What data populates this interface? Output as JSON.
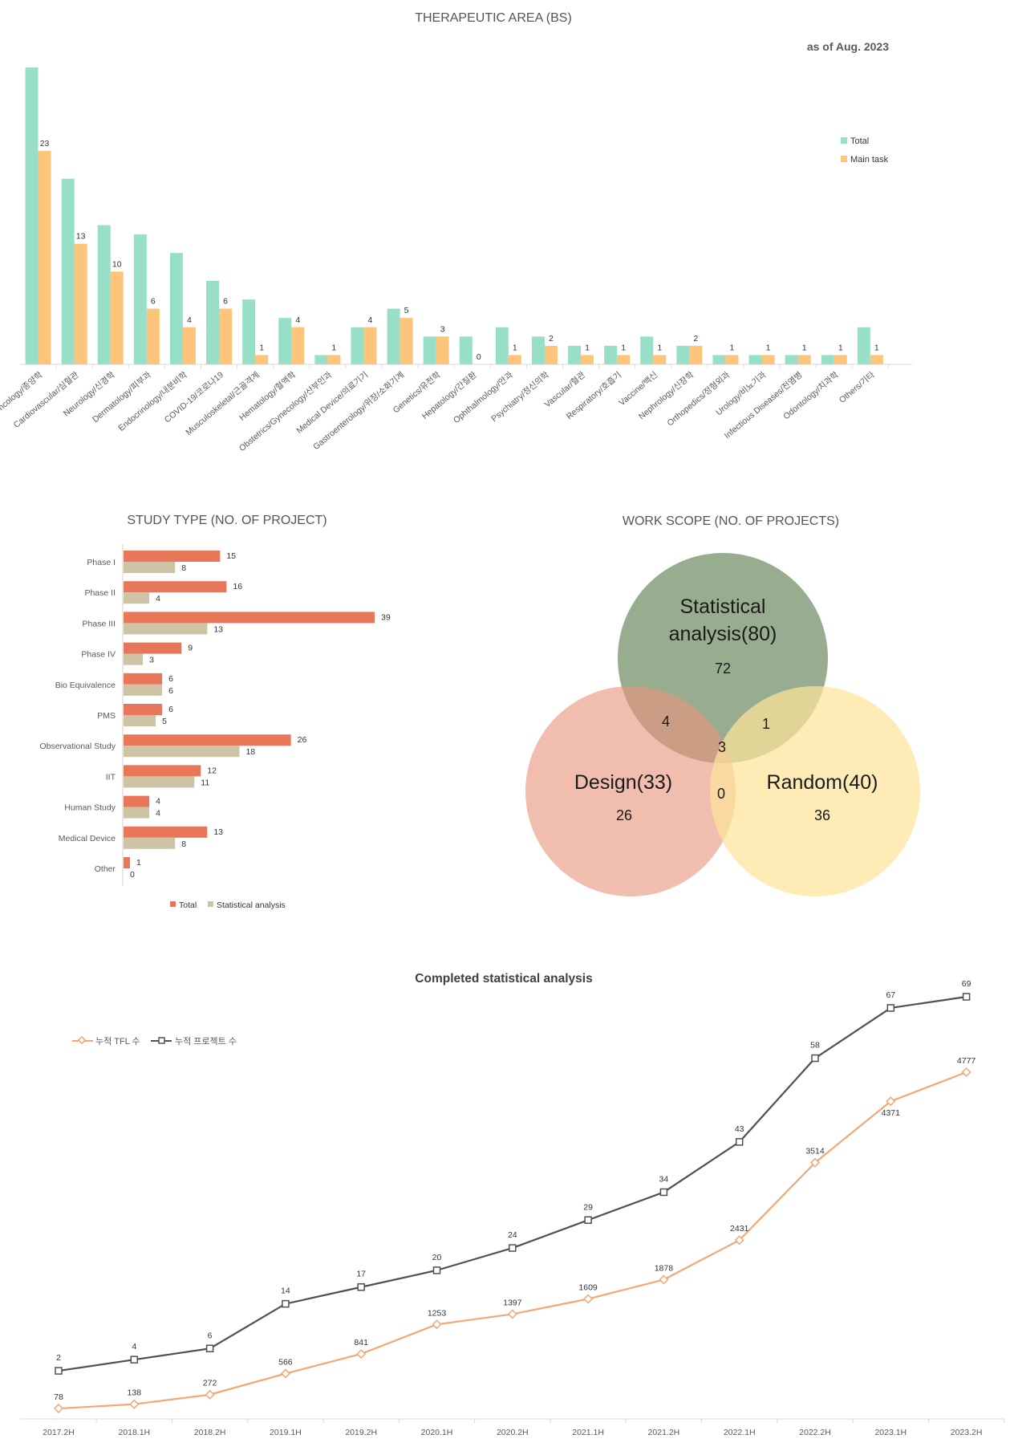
{
  "therapeutic": {
    "title": "THERAPEUTIC AREA (BS)",
    "date_note": "as of Aug. 2023",
    "legend": [
      "Total",
      "Main task"
    ],
    "colors": {
      "total": "#98DFC8",
      "main": "#FDC47C"
    }
  },
  "study_type": {
    "title": "STUDY TYPE (NO. OF PROJECT)",
    "legend": [
      "Total",
      "Statistical analysis"
    ],
    "colors": {
      "total": "#E8775A",
      "stat": "#CFC3A6"
    }
  },
  "work_scope": {
    "title": "WORK SCOPE (NO. OF PROJECTS)",
    "stat": {
      "name": "Statistical",
      "name2": "analysis(80)",
      "only": "72",
      "color": "#7B9570"
    },
    "design": {
      "name": "Design(33)",
      "only": "26",
      "color": "#E8957E"
    },
    "random": {
      "name": "Random(40)",
      "only": "36",
      "color": "#FDE39A"
    },
    "stat_design": "4",
    "stat_random": "1",
    "design_random": "0",
    "all_three": "3"
  },
  "completed": {
    "title": "Completed statistical analysis",
    "legend": [
      "누적 TFL 수",
      "누적 프로젝트 수"
    ],
    "colors": {
      "tfl": "#F2A774",
      "proj": "#505050"
    }
  },
  "chart_data": [
    {
      "type": "bar",
      "title": "THERAPEUTIC AREA (BS)",
      "categories": [
        "Oncology/종양학",
        "Cardiovascular/심혈관",
        "Neurology/신경학",
        "Dermatology/피부과",
        "Endocrinology/내분비학",
        "COVID-19/코로나19",
        "Musculoskeletal/근골격계",
        "Hematology/혈액학",
        "Obstetrics/Gynecology/산부인과",
        "Medical Device/의료기기",
        "Gastroenterology/위장/소화기계",
        "Genetics/유전학",
        "Hepatology/간질환",
        "Ophthalmology/안과",
        "Psychiatry/정신의학",
        "Vascular/혈관",
        "Respiratory/호흡기",
        "Vaccine/백신",
        "Nephrology/신장학",
        "Orthopedics/정형외과",
        "Urology/비뇨기과",
        "Infectious Diseases/전염병",
        "Odontology/치과학",
        "Others/기타"
      ],
      "series": [
        {
          "name": "Total",
          "values": [
            32,
            20,
            15,
            14,
            12,
            9,
            7,
            5,
            1,
            4,
            6,
            3,
            3,
            4,
            3,
            2,
            2,
            3,
            2,
            1,
            1,
            1,
            1,
            4
          ]
        },
        {
          "name": "Main task",
          "values": [
            23,
            13,
            10,
            6,
            4,
            6,
            1,
            4,
            1,
            4,
            5,
            3,
            0,
            1,
            2,
            1,
            1,
            1,
            2,
            1,
            1,
            1,
            1,
            1
          ]
        }
      ],
      "data_labels_series": "Main task",
      "ylim": [
        0,
        32
      ],
      "legend_position": "right"
    },
    {
      "type": "bar",
      "orientation": "horizontal",
      "title": "STUDY TYPE (NO. OF PROJECT)",
      "categories": [
        "Phase I",
        "Phase II",
        "Phase III",
        "Phase IV",
        "Bio Equivalence",
        "PMS",
        "Observational Study",
        "IIT",
        "Human Study",
        "Medical Device",
        "Other"
      ],
      "series": [
        {
          "name": "Total",
          "values": [
            15,
            16,
            39,
            9,
            6,
            6,
            26,
            12,
            4,
            13,
            1
          ]
        },
        {
          "name": "Statistical analysis",
          "values": [
            8,
            4,
            13,
            3,
            6,
            5,
            18,
            11,
            4,
            8,
            0
          ]
        }
      ],
      "xlim": [
        0,
        39
      ],
      "legend_position": "bottom"
    },
    {
      "type": "line",
      "title": "Completed statistical analysis",
      "categories": [
        "2017.2H",
        "2018.1H",
        "2018.2H",
        "2019.1H",
        "2019.2H",
        "2020.1H",
        "2020.2H",
        "2021.1H",
        "2021.2H",
        "2022.1H",
        "2022.2H",
        "2023.1H",
        "2023.2H"
      ],
      "series": [
        {
          "name": "누적 TFL 수",
          "values": [
            78,
            138,
            272,
            566,
            841,
            1253,
            1397,
            1609,
            1878,
            2431,
            3514,
            4371,
            4777
          ],
          "axis": "left"
        },
        {
          "name": "누적 프로젝트 수",
          "values": [
            2,
            4,
            6,
            14,
            17,
            20,
            24,
            29,
            34,
            43,
            58,
            67,
            69
          ],
          "axis": "right"
        }
      ],
      "legend_position": "top-left"
    }
  ]
}
